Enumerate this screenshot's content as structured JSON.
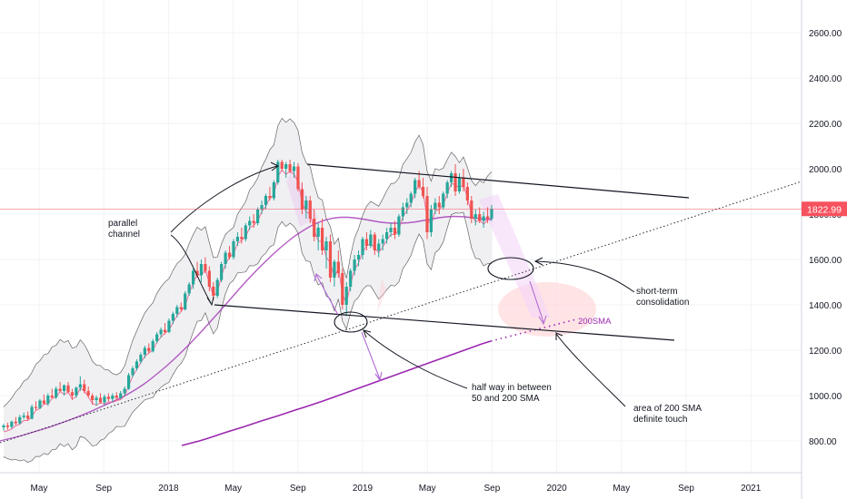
{
  "chart_data": {
    "type": "candlestick",
    "colors": {
      "up": "#26a69a",
      "down": "#ef5350",
      "sma200": "#9c27b0",
      "sma50": "#f06292",
      "band_fill": "#ececf0",
      "band_line": "#666666",
      "price_line": "#f7525f",
      "price_label_bg": "#f7525f",
      "arrow": "#b06bd6",
      "highlight": "#ffcdd2"
    },
    "y_axis": {
      "ticks": [
        "2600.00",
        "2400.00",
        "2200.00",
        "2000.00",
        "1800.00",
        "1600.00",
        "1400.00",
        "1200.00",
        "1000.00",
        "800.00"
      ]
    },
    "x_axis": {
      "ticks": [
        "May",
        "Sep",
        "2018",
        "May",
        "Sep",
        "2019",
        "May",
        "Sep",
        "2020",
        "May",
        "Sep",
        "2021"
      ]
    },
    "last_price": "1822.99",
    "ohlc": [
      [
        860,
        875,
        845,
        868
      ],
      [
        868,
        880,
        850,
        862
      ],
      [
        862,
        890,
        855,
        885
      ],
      [
        885,
        905,
        870,
        878
      ],
      [
        878,
        915,
        872,
        905
      ],
      [
        905,
        925,
        895,
        912
      ],
      [
        912,
        930,
        890,
        898
      ],
      [
        898,
        960,
        895,
        950
      ],
      [
        950,
        975,
        935,
        945
      ],
      [
        945,
        985,
        940,
        978
      ],
      [
        978,
        1005,
        960,
        965
      ],
      [
        965,
        1010,
        955,
        1000
      ],
      [
        1000,
        1030,
        985,
        992
      ],
      [
        992,
        1040,
        985,
        1030
      ],
      [
        1030,
        1060,
        1015,
        1020
      ],
      [
        1020,
        1050,
        1000,
        1045
      ],
      [
        1045,
        1060,
        1010,
        1015
      ],
      [
        1015,
        1030,
        980,
        1000
      ],
      [
        1000,
        1040,
        990,
        1035
      ],
      [
        1035,
        1085,
        1020,
        1050
      ],
      [
        1050,
        1070,
        1010,
        1020
      ],
      [
        1020,
        1040,
        990,
        1000
      ],
      [
        1000,
        1010,
        960,
        980
      ],
      [
        980,
        1000,
        955,
        990
      ],
      [
        990,
        1010,
        965,
        970
      ],
      [
        970,
        1005,
        960,
        995
      ],
      [
        995,
        1010,
        975,
        985
      ],
      [
        985,
        1010,
        970,
        1000
      ],
      [
        1000,
        1015,
        980,
        990
      ],
      [
        990,
        1020,
        985,
        1010
      ],
      [
        1010,
        1040,
        995,
        1030
      ],
      [
        1030,
        1100,
        1025,
        1090
      ],
      [
        1090,
        1130,
        1080,
        1120
      ],
      [
        1120,
        1160,
        1110,
        1150
      ],
      [
        1150,
        1190,
        1140,
        1180
      ],
      [
        1180,
        1220,
        1165,
        1210
      ],
      [
        1210,
        1230,
        1185,
        1195
      ],
      [
        1195,
        1250,
        1190,
        1240
      ],
      [
        1240,
        1280,
        1230,
        1270
      ],
      [
        1270,
        1300,
        1255,
        1290
      ],
      [
        1290,
        1320,
        1270,
        1280
      ],
      [
        1280,
        1340,
        1275,
        1330
      ],
      [
        1330,
        1370,
        1315,
        1360
      ],
      [
        1360,
        1400,
        1345,
        1390
      ],
      [
        1390,
        1410,
        1370,
        1380
      ],
      [
        1380,
        1460,
        1375,
        1450
      ],
      [
        1450,
        1500,
        1440,
        1490
      ],
      [
        1490,
        1560,
        1470,
        1550
      ],
      [
        1550,
        1590,
        1520,
        1530
      ],
      [
        1530,
        1600,
        1500,
        1580
      ],
      [
        1580,
        1610,
        1540,
        1550
      ],
      [
        1550,
        1570,
        1460,
        1480
      ],
      [
        1480,
        1500,
        1420,
        1440
      ],
      [
        1440,
        1520,
        1430,
        1510
      ],
      [
        1510,
        1590,
        1500,
        1580
      ],
      [
        1580,
        1640,
        1560,
        1630
      ],
      [
        1630,
        1660,
        1600,
        1610
      ],
      [
        1610,
        1690,
        1600,
        1680
      ],
      [
        1680,
        1720,
        1660,
        1700
      ],
      [
        1700,
        1740,
        1670,
        1690
      ],
      [
        1690,
        1760,
        1680,
        1750
      ],
      [
        1750,
        1790,
        1730,
        1770
      ],
      [
        1770,
        1800,
        1740,
        1760
      ],
      [
        1760,
        1830,
        1750,
        1820
      ],
      [
        1820,
        1860,
        1800,
        1840
      ],
      [
        1840,
        1890,
        1820,
        1880
      ],
      [
        1880,
        1920,
        1860,
        1870
      ],
      [
        1870,
        1950,
        1860,
        1940
      ],
      [
        1940,
        2040,
        1930,
        2030
      ],
      [
        2030,
        2040,
        1990,
        2000
      ],
      [
        2000,
        2030,
        1960,
        2020
      ],
      [
        2020,
        2040,
        1980,
        1990
      ],
      [
        1990,
        2030,
        1960,
        2010
      ],
      [
        2010,
        2025,
        1900,
        1910
      ],
      [
        1910,
        1940,
        1800,
        1820
      ],
      [
        1820,
        1880,
        1780,
        1860
      ],
      [
        1860,
        1880,
        1760,
        1780
      ],
      [
        1780,
        1820,
        1680,
        1700
      ],
      [
        1700,
        1760,
        1640,
        1740
      ],
      [
        1740,
        1780,
        1620,
        1640
      ],
      [
        1640,
        1700,
        1560,
        1680
      ],
      [
        1680,
        1710,
        1500,
        1520
      ],
      [
        1520,
        1600,
        1480,
        1590
      ],
      [
        1590,
        1640,
        1520,
        1540
      ],
      [
        1540,
        1560,
        1380,
        1400
      ],
      [
        1400,
        1500,
        1350,
        1480
      ],
      [
        1480,
        1560,
        1460,
        1550
      ],
      [
        1550,
        1620,
        1530,
        1600
      ],
      [
        1600,
        1640,
        1570,
        1620
      ],
      [
        1620,
        1700,
        1600,
        1690
      ],
      [
        1690,
        1720,
        1640,
        1660
      ],
      [
        1660,
        1730,
        1650,
        1710
      ],
      [
        1710,
        1720,
        1620,
        1640
      ],
      [
        1640,
        1690,
        1610,
        1670
      ],
      [
        1670,
        1710,
        1640,
        1690
      ],
      [
        1690,
        1740,
        1670,
        1720
      ],
      [
        1720,
        1760,
        1700,
        1740
      ],
      [
        1740,
        1770,
        1690,
        1710
      ],
      [
        1710,
        1800,
        1700,
        1790
      ],
      [
        1790,
        1850,
        1770,
        1830
      ],
      [
        1830,
        1870,
        1800,
        1850
      ],
      [
        1850,
        1900,
        1830,
        1890
      ],
      [
        1890,
        1960,
        1870,
        1950
      ],
      [
        1950,
        1990,
        1910,
        1920
      ],
      [
        1920,
        1960,
        1870,
        1880
      ],
      [
        1880,
        1920,
        1690,
        1720
      ],
      [
        1720,
        1840,
        1700,
        1820
      ],
      [
        1820,
        1870,
        1800,
        1850
      ],
      [
        1850,
        1880,
        1800,
        1830
      ],
      [
        1830,
        1900,
        1820,
        1890
      ],
      [
        1890,
        1950,
        1870,
        1940
      ],
      [
        1940,
        1990,
        1920,
        1980
      ],
      [
        1980,
        2020,
        1880,
        1900
      ],
      [
        1900,
        1980,
        1890,
        1960
      ],
      [
        1960,
        2000,
        1900,
        1920
      ],
      [
        1920,
        1940,
        1840,
        1860
      ],
      [
        1860,
        1880,
        1760,
        1780
      ],
      [
        1780,
        1820,
        1750,
        1800
      ],
      [
        1800,
        1830,
        1760,
        1770
      ],
      [
        1770,
        1810,
        1740,
        1790
      ],
      [
        1790,
        1830,
        1760,
        1780
      ],
      [
        1780,
        1840,
        1770,
        1823
      ]
    ],
    "sma200": [
      780,
      790,
      800,
      812,
      825,
      838,
      850,
      862,
      875,
      888,
      900,
      912,
      925,
      938,
      950,
      963,
      976,
      990,
      1004,
      1018,
      1032,
      1046,
      1060,
      1074,
      1088,
      1102,
      1116,
      1130,
      1144,
      1158,
      1172,
      1186,
      1200,
      1214,
      1228,
      1240
    ],
    "sma50": [
      800,
      808,
      816,
      825,
      835,
      845,
      855,
      866,
      878,
      890,
      903,
      916,
      930,
      945,
      960,
      975,
      990,
      1008,
      1028,
      1050,
      1075,
      1102,
      1130,
      1160,
      1192,
      1225,
      1260,
      1296,
      1333,
      1370,
      1408,
      1446,
      1484,
      1520,
      1555,
      1588,
      1620,
      1650,
      1678,
      1704,
      1726,
      1746,
      1762,
      1774,
      1782,
      1786,
      1786,
      1783,
      1778,
      1772,
      1766,
      1762,
      1760,
      1760,
      1762,
      1766,
      1772,
      1778,
      1784,
      1788,
      1790,
      1789,
      1786,
      1782,
      1778,
      1776
    ],
    "annotations": [
      {
        "lines": [
          "parallel",
          "channel"
        ]
      },
      {
        "lines": [
          "short-term",
          "consolidation"
        ]
      },
      {
        "lines": [
          "half way in between",
          "50 and 200 SMA"
        ]
      },
      {
        "lines": [
          "area of 200 SMA",
          "definite touch"
        ]
      },
      {
        "lines": [
          "200SMA"
        ]
      }
    ]
  }
}
